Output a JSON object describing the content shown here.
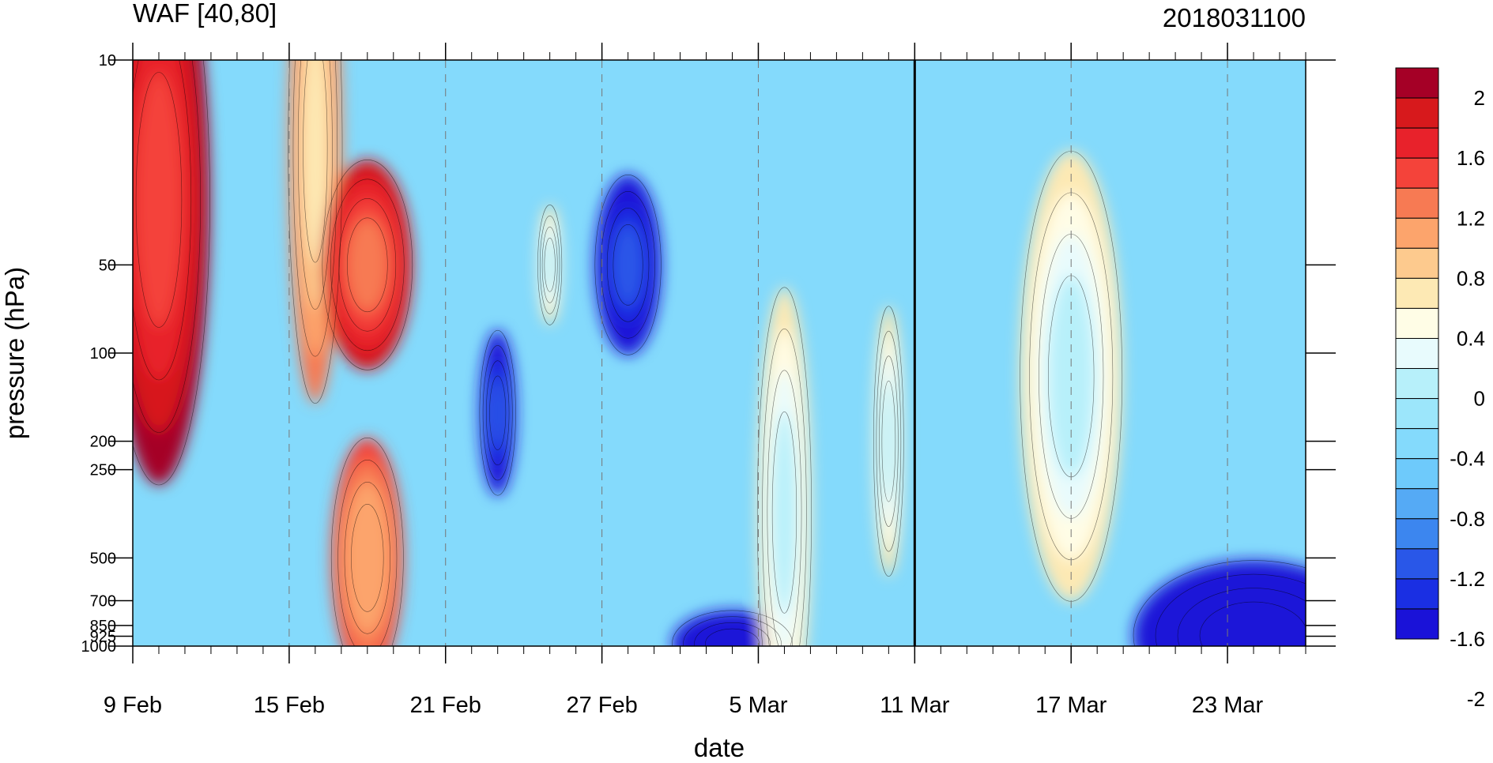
{
  "chart_data": {
    "type": "heatmap",
    "title_left": "WAF [40,80]",
    "title_right": "2018031100",
    "xlabel": "date",
    "ylabel": "pressure (hPa)",
    "y_scale": "log",
    "y_reversed": true,
    "ylim": [
      1000,
      10
    ],
    "x_ticks": [
      "9 Feb",
      "15 Feb",
      "21 Feb",
      "27 Feb",
      "5 Mar",
      "11 Mar",
      "17 Mar",
      "23 Mar"
    ],
    "y_ticks": [
      10,
      50,
      100,
      200,
      250,
      500,
      700,
      850,
      925,
      1000
    ],
    "y_tick_labels": [
      "10",
      "50",
      "100",
      "200",
      "250",
      "500",
      "700",
      "850",
      "925",
      "1000"
    ],
    "marker_line": "11 Mar",
    "colorbar": {
      "labels": [
        "2",
        "1.6",
        "1.2",
        "0.8",
        "0.4",
        "0",
        "-0.4",
        "-0.8",
        "-1.2",
        "-1.6",
        "-2"
      ],
      "colors": [
        "#a50026",
        "#d7191c",
        "#e8222b",
        "#f4433a",
        "#f77a53",
        "#fca46c",
        "#fdca8e",
        "#fde9b4",
        "#fffde6",
        "#e8fbfd",
        "#b7f0fa",
        "#9ce6fb",
        "#84dafc",
        "#6ecafb",
        "#55aaf5",
        "#3c86ef",
        "#2957e8",
        "#1a2fe3",
        "#1a12d8"
      ]
    },
    "features": [
      {
        "date": "10 Feb",
        "pressure": 30,
        "value": 2.2
      },
      {
        "date": "16 Feb",
        "pressure": 20,
        "value": 1.4
      },
      {
        "date": "18 Feb",
        "pressure": 50,
        "value": 2.0
      },
      {
        "date": "18 Feb",
        "pressure": 500,
        "value": 1.6
      },
      {
        "date": "25 Feb",
        "pressure": 50,
        "value": 0.8
      },
      {
        "date": "23 Feb",
        "pressure": 160,
        "value": -1.6
      },
      {
        "date": "28 Feb",
        "pressure": 50,
        "value": -1.6
      },
      {
        "date": "4 Mar",
        "pressure": 980,
        "value": -2.0
      },
      {
        "date": "6 Mar",
        "pressure": 350,
        "value": 0.8
      },
      {
        "date": "10 Mar",
        "pressure": 200,
        "value": 0.8
      },
      {
        "date": "17 Mar",
        "pressure": 120,
        "value": 0.8
      },
      {
        "date": "24 Mar",
        "pressure": 920,
        "value": -2.0
      }
    ]
  }
}
